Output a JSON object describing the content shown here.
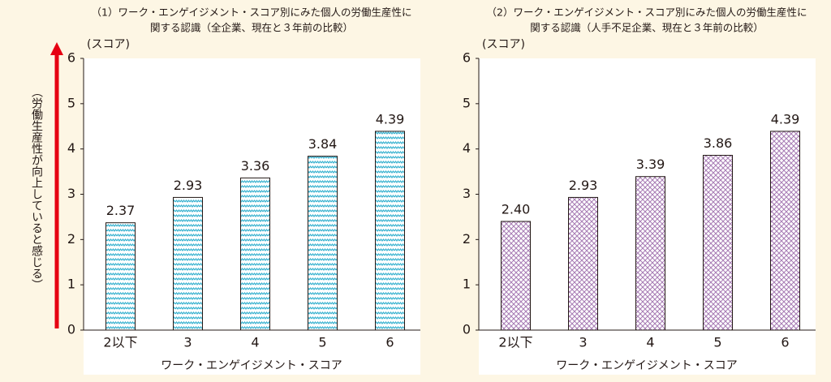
{
  "side_label": "（労働生産性が向上していると感じる）",
  "chart_data": [
    {
      "type": "bar",
      "title": [
        "（1）ワーク・エンゲイジメント・スコア別にみた個人の労働生産性に",
        "関する認識（全企業、現在と３年前の比較）"
      ],
      "ylabel": "(スコア)",
      "xlabel": "ワーク・エンゲイジメント・スコア",
      "categories": [
        "2以下",
        "3",
        "4",
        "5",
        "6"
      ],
      "values": [
        2.37,
        2.93,
        3.36,
        3.84,
        4.39
      ],
      "color": "#3bb3d0",
      "pattern": "wave",
      "ylim": [
        0,
        6
      ],
      "yticks": [
        0,
        1,
        2,
        3,
        4,
        5,
        6
      ]
    },
    {
      "type": "bar",
      "title": [
        "（2）ワーク・エンゲイジメント・スコア別にみた個人の労働生産性に",
        "関する認識（人手不足企業、現在と３年前の比較）"
      ],
      "ylabel": "(スコア)",
      "xlabel": "ワーク・エンゲイジメント・スコア",
      "categories": [
        "2以下",
        "3",
        "4",
        "5",
        "6"
      ],
      "values": [
        2.4,
        2.93,
        3.39,
        3.86,
        4.39
      ],
      "value_labels": [
        "2.40",
        "2.93",
        "3.39",
        "3.86",
        "4.39"
      ],
      "color": "#a77bb4",
      "pattern": "crosshatch",
      "ylim": [
        0,
        6
      ],
      "yticks": [
        0,
        1,
        2,
        3,
        4,
        5,
        6
      ]
    }
  ]
}
